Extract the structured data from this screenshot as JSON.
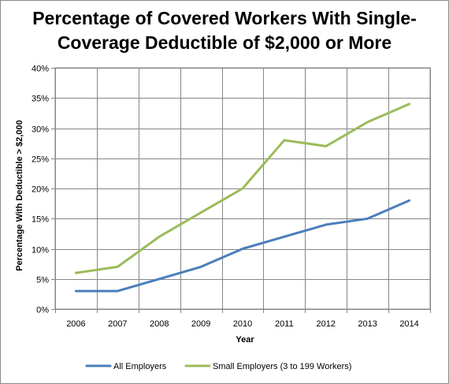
{
  "chart_data": {
    "type": "line",
    "title_line1": "Percentage of Covered Workers With Single-",
    "title_line2": "Coverage Deductible of $2,000 or More",
    "xlabel": "Year",
    "ylabel": "Percentage With Deductible > $2,000",
    "categories": [
      "2006",
      "2007",
      "2008",
      "2009",
      "2010",
      "2011",
      "2012",
      "2013",
      "2014"
    ],
    "ylim": [
      0,
      40
    ],
    "yticks": [
      0,
      5,
      10,
      15,
      20,
      25,
      30,
      35,
      40
    ],
    "ytick_labels": [
      "0%",
      "5%",
      "10%",
      "15%",
      "20%",
      "25%",
      "30%",
      "35%",
      "40%"
    ],
    "grid": true,
    "legend_position": "bottom",
    "series": [
      {
        "name": "All Employers",
        "color": "#4a7ebb",
        "values": [
          3,
          3,
          5,
          7,
          10,
          12,
          14,
          15,
          18
        ]
      },
      {
        "name": "Small Employers (3 to 199 Workers)",
        "color": "#9bbb59",
        "values": [
          6,
          7,
          12,
          16,
          20,
          28,
          27,
          31,
          34
        ]
      }
    ]
  }
}
